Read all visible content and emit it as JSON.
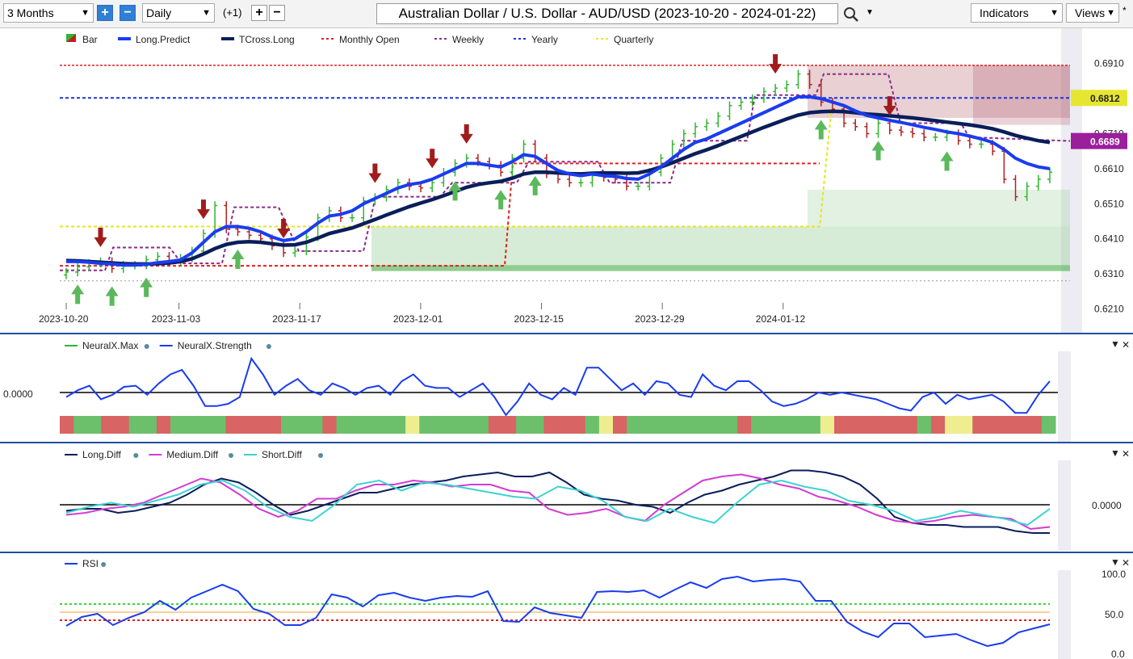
{
  "toolbar": {
    "period": "3 Months",
    "interval": "Daily",
    "offset": "(+1)",
    "title": "Australian Dollar / U.S. Dollar - AUD/USD (2023-10-20 - 2024-01-22)",
    "indicators_label": "Indicators",
    "views_label": "Views"
  },
  "colors": {
    "bull": "#32b432",
    "bear": "#b42020",
    "long_predict": "#1a3cf0",
    "tcross_long": "#0a1e5a",
    "monthly_open": "#e02020",
    "weekly": "#8a2a8a",
    "yearly": "#1e32dc",
    "quarterly": "#e6e61e",
    "up_arrow": "#5cb85c",
    "down_arrow": "#a01c1c",
    "price_badge_yellow": "#e6e632",
    "price_badge_purple": "#9b1e9b"
  },
  "chart_data": [
    {
      "type": "candlestick",
      "title": "Australian Dollar / U.S. Dollar - AUD/USD (2023-10-20 - 2024-01-22)",
      "legend": [
        {
          "label": "Bar",
          "icon": "bar-icon"
        },
        {
          "label": "Long.Predict",
          "color": "#1a3cf0"
        },
        {
          "label": "TCross.Long",
          "color": "#0a1e5a"
        },
        {
          "label": "Monthly Open",
          "color": "#e02020",
          "dash": true
        },
        {
          "label": "Weekly",
          "color": "#8a2a8a",
          "dash": true
        },
        {
          "label": "Yearly",
          "color": "#1e32dc",
          "dash": true
        },
        {
          "label": "Quarterly",
          "color": "#e6e61e",
          "dash": true
        }
      ],
      "y_ticks": [
        "0.6910",
        "0.6810",
        "0.6710",
        "0.6610",
        "0.6510",
        "0.6410",
        "0.6310",
        "0.6210"
      ],
      "x_ticks": [
        "2023-10-20",
        "2023-11-03",
        "2023-11-17",
        "2023-12-01",
        "2023-12-15",
        "2023-12-29",
        "2024-01-12"
      ],
      "price_badges": [
        {
          "value": "0.6812",
          "color": "#e6e632"
        },
        {
          "value": "0.6689",
          "color": "#9b1e9b"
        }
      ],
      "ylim": [
        0.6195,
        0.696
      ],
      "close": [
        0.6315,
        0.633,
        0.634,
        0.6345,
        0.6325,
        0.6335,
        0.6335,
        0.635,
        0.636,
        0.6345,
        0.6355,
        0.6375,
        0.6425,
        0.6505,
        0.6438,
        0.643,
        0.642,
        0.641,
        0.639,
        0.637,
        0.6375,
        0.6415,
        0.647,
        0.649,
        0.647,
        0.647,
        0.6518,
        0.6528,
        0.655,
        0.657,
        0.656,
        0.6555,
        0.657,
        0.66,
        0.6625,
        0.664,
        0.663,
        0.662,
        0.66,
        0.664,
        0.668,
        0.664,
        0.6595,
        0.658,
        0.657,
        0.657,
        0.659,
        0.6585,
        0.658,
        0.656,
        0.656,
        0.66,
        0.664,
        0.668,
        0.671,
        0.673,
        0.674,
        0.676,
        0.679,
        0.68,
        0.681,
        0.683,
        0.684,
        0.685,
        0.688,
        0.685,
        0.68,
        0.678,
        0.674,
        0.673,
        0.671,
        0.674,
        0.672,
        0.6715,
        0.671,
        0.67,
        0.67,
        0.671,
        0.669,
        0.668,
        0.668,
        0.666,
        0.658,
        0.653,
        0.656,
        0.658,
        0.66
      ],
      "long_predict": [
        0.6345,
        0.6345,
        0.6343,
        0.634,
        0.6338,
        0.6335,
        0.6335,
        0.6337,
        0.6342,
        0.6345,
        0.635,
        0.637,
        0.64,
        0.643,
        0.6445,
        0.6445,
        0.644,
        0.643,
        0.6415,
        0.6405,
        0.641,
        0.643,
        0.6455,
        0.6475,
        0.648,
        0.649,
        0.651,
        0.6525,
        0.654,
        0.6555,
        0.6565,
        0.657,
        0.658,
        0.6595,
        0.661,
        0.6625,
        0.6625,
        0.662,
        0.6615,
        0.663,
        0.665,
        0.6645,
        0.6625,
        0.6605,
        0.6595,
        0.659,
        0.6595,
        0.659,
        0.6588,
        0.6582,
        0.658,
        0.6595,
        0.6615,
        0.664,
        0.6665,
        0.6685,
        0.6695,
        0.671,
        0.6725,
        0.674,
        0.6755,
        0.677,
        0.6785,
        0.68,
        0.6815,
        0.6815,
        0.681,
        0.68,
        0.679,
        0.6775,
        0.6762,
        0.6755,
        0.6748,
        0.6742,
        0.6735,
        0.6728,
        0.6722,
        0.6715,
        0.671,
        0.6703,
        0.6695,
        0.6685,
        0.6665,
        0.664,
        0.6625,
        0.6615,
        0.661
      ],
      "tcross_long": [
        0.6348,
        0.6347,
        0.6345,
        0.6343,
        0.6341,
        0.6339,
        0.6338,
        0.6338,
        0.6339,
        0.6341,
        0.6345,
        0.6353,
        0.6367,
        0.6382,
        0.6394,
        0.64,
        0.6402,
        0.64,
        0.6396,
        0.6392,
        0.6393,
        0.64,
        0.6412,
        0.6425,
        0.6433,
        0.6441,
        0.6453,
        0.6465,
        0.6478,
        0.649,
        0.6502,
        0.6512,
        0.6522,
        0.6533,
        0.6545,
        0.6557,
        0.6565,
        0.657,
        0.6574,
        0.6583,
        0.6595,
        0.66,
        0.66,
        0.6598,
        0.6596,
        0.6595,
        0.6597,
        0.6598,
        0.6598,
        0.6597,
        0.6598,
        0.6605,
        0.6615,
        0.6627,
        0.664,
        0.6653,
        0.6664,
        0.6676,
        0.6689,
        0.6702,
        0.6715,
        0.6728,
        0.674,
        0.6752,
        0.6763,
        0.677,
        0.6773,
        0.6774,
        0.6773,
        0.677,
        0.6766,
        0.6764,
        0.6761,
        0.6758,
        0.6755,
        0.6751,
        0.6747,
        0.6743,
        0.6739,
        0.6735,
        0.673,
        0.6724,
        0.6715,
        0.6705,
        0.6697,
        0.669,
        0.6685
      ],
      "yearly": 0.6812,
      "weekly_last": 0.6689,
      "monthly_open_segments": [
        [
          0.634,
          0.634
        ],
        [
          0.663,
          0.663
        ],
        [
          0.6905,
          0.6905
        ]
      ],
      "quarterly": 0.6445
    },
    {
      "type": "line",
      "title": "NeuralX",
      "legend": [
        {
          "label": "NeuralX.Max",
          "color": "#32b432"
        },
        {
          "label": "NeuralX.Strength",
          "color": "#1a3cf0"
        }
      ],
      "y_ticks": [
        "0.0000"
      ],
      "neuralx_strength": [
        -0.2,
        0.1,
        0.3,
        -0.3,
        -0.1,
        0.25,
        0.3,
        -0.1,
        0.4,
        0.8,
        1.0,
        0.3,
        -0.6,
        -0.6,
        -0.5,
        -0.2,
        1.5,
        0.8,
        -0.1,
        0.3,
        0.6,
        0.1,
        -0.1,
        0.4,
        0.2,
        -0.1,
        0.2,
        0.3,
        -0.1,
        0.5,
        0.8,
        0.3,
        0.2,
        0.2,
        -0.2,
        0.1,
        0.4,
        -0.2,
        -1.0,
        -0.4,
        0.4,
        -0.1,
        -0.3,
        0.2,
        -0.1,
        1.1,
        1.1,
        0.6,
        0.1,
        0.4,
        -0.1,
        0.5,
        0.4,
        -0.1,
        -0.2,
        0.8,
        0.3,
        0.1,
        0.5,
        0.5,
        0.1,
        -0.4,
        -0.6,
        -0.5,
        -0.3,
        0.0,
        -0.1,
        0.0,
        -0.1,
        -0.2,
        -0.3,
        -0.5,
        -0.7,
        -0.8,
        -0.2,
        0.0,
        -0.5,
        -0.1,
        -0.3,
        -0.2,
        -0.1,
        -0.4,
        -0.9,
        -0.9,
        -0.1,
        0.5
      ],
      "neuralx_max_states": [
        "r",
        "g",
        "g",
        "r",
        "r",
        "g",
        "g",
        "r",
        "g",
        "g",
        "g",
        "g",
        "r",
        "r",
        "r",
        "r",
        "g",
        "g",
        "g",
        "r",
        "g",
        "g",
        "g",
        "g",
        "g",
        "y",
        "g",
        "g",
        "g",
        "g",
        "g",
        "r",
        "r",
        "g",
        "g",
        "r",
        "r",
        "r",
        "g",
        "y",
        "r",
        "g",
        "g",
        "g",
        "g",
        "g",
        "g",
        "g",
        "g",
        "r",
        "g",
        "g",
        "g",
        "g",
        "g",
        "y",
        "r",
        "r",
        "r",
        "r",
        "r",
        "r",
        "g",
        "r",
        "y",
        "y",
        "r",
        "r",
        "r",
        "r",
        "r",
        "g"
      ]
    },
    {
      "type": "line",
      "title": "Diff",
      "legend": [
        {
          "label": "Long.Diff",
          "color": "#0a1e5a"
        },
        {
          "label": "Medium.Diff",
          "color": "#d23cd2"
        },
        {
          "label": "Short.Diff",
          "color": "#3cd2d2"
        }
      ],
      "y_ticks": [
        "0.0000"
      ],
      "long_diff": [
        -0.3,
        -0.2,
        -0.2,
        -0.4,
        -0.3,
        -0.1,
        0.1,
        0.5,
        1.0,
        1.3,
        1.1,
        0.6,
        0.0,
        -0.5,
        -0.3,
        0.0,
        0.3,
        0.6,
        0.6,
        0.8,
        1.0,
        1.1,
        1.2,
        1.4,
        1.5,
        1.6,
        1.4,
        1.4,
        1.6,
        1.1,
        0.5,
        0.3,
        0.2,
        0.0,
        -0.1,
        -0.4,
        0.1,
        0.5,
        0.7,
        1.0,
        1.2,
        1.4,
        1.7,
        1.7,
        1.6,
        1.4,
        1.0,
        0.3,
        -0.6,
        -0.9,
        -1.0,
        -1.0,
        -1.1,
        -1.1,
        -1.1,
        -1.3,
        -1.4,
        -1.4
      ],
      "medium_diff": [
        -0.5,
        -0.4,
        -0.2,
        -0.1,
        0.1,
        0.5,
        0.9,
        1.3,
        1.1,
        0.5,
        -0.2,
        -0.6,
        -0.3,
        0.3,
        0.3,
        0.7,
        1.0,
        1.0,
        1.2,
        1.1,
        0.9,
        1.0,
        1.0,
        0.7,
        0.6,
        -0.2,
        -0.5,
        -0.4,
        -0.2,
        -0.6,
        -0.8,
        0.0,
        0.6,
        1.2,
        1.4,
        1.5,
        1.3,
        1.0,
        0.8,
        0.4,
        0.2,
        -0.1,
        -0.5,
        -0.8,
        -0.9,
        -0.8,
        -0.6,
        -0.5,
        -0.6,
        -0.7,
        -1.2,
        -1.1
      ],
      "short_diff": [
        -0.4,
        -0.1,
        0.1,
        -0.1,
        0.2,
        0.5,
        1.0,
        1.2,
        0.7,
        -0.1,
        -0.6,
        -0.8,
        0.0,
        1.0,
        1.2,
        0.7,
        1.1,
        1.0,
        0.8,
        0.6,
        0.4,
        0.3,
        0.9,
        0.7,
        0.2,
        -0.6,
        -0.8,
        -0.2,
        -0.6,
        -0.9,
        0.1,
        1.0,
        1.2,
        0.9,
        0.7,
        0.2,
        0.0,
        -0.3,
        -0.8,
        -0.6,
        -0.3,
        -0.5,
        -0.7,
        -1.0,
        -0.2
      ],
      "ylim": [
        -1.8,
        2.0
      ]
    },
    {
      "type": "line",
      "title": "RSI",
      "legend": [
        {
          "label": "RSI",
          "color": "#1a3cf0"
        }
      ],
      "y_ticks": [
        "100.0",
        "50.0",
        "0.0"
      ],
      "ylim": [
        0,
        100
      ],
      "rsi": [
        35,
        46,
        50,
        36,
        45,
        52,
        66,
        55,
        70,
        78,
        86,
        78,
        56,
        50,
        36,
        36,
        45,
        74,
        70,
        59,
        73,
        76,
        70,
        66,
        70,
        72,
        71,
        78,
        41,
        40,
        58,
        51,
        48,
        45,
        77,
        78,
        77,
        79,
        70,
        80,
        89,
        82,
        93,
        96,
        90,
        92,
        93,
        90,
        66,
        66,
        40,
        28,
        21,
        38,
        38,
        21,
        23,
        25,
        17,
        10,
        14,
        27,
        32,
        37
      ]
    }
  ],
  "panel_headers": {
    "neuralx": {
      "max": "NeuralX.Max",
      "strength": "NeuralX.Strength"
    },
    "diff": {
      "long": "Long.Diff",
      "medium": "Medium.Diff",
      "short": "Short.Diff"
    },
    "rsi": {
      "rsi": "RSI"
    }
  }
}
